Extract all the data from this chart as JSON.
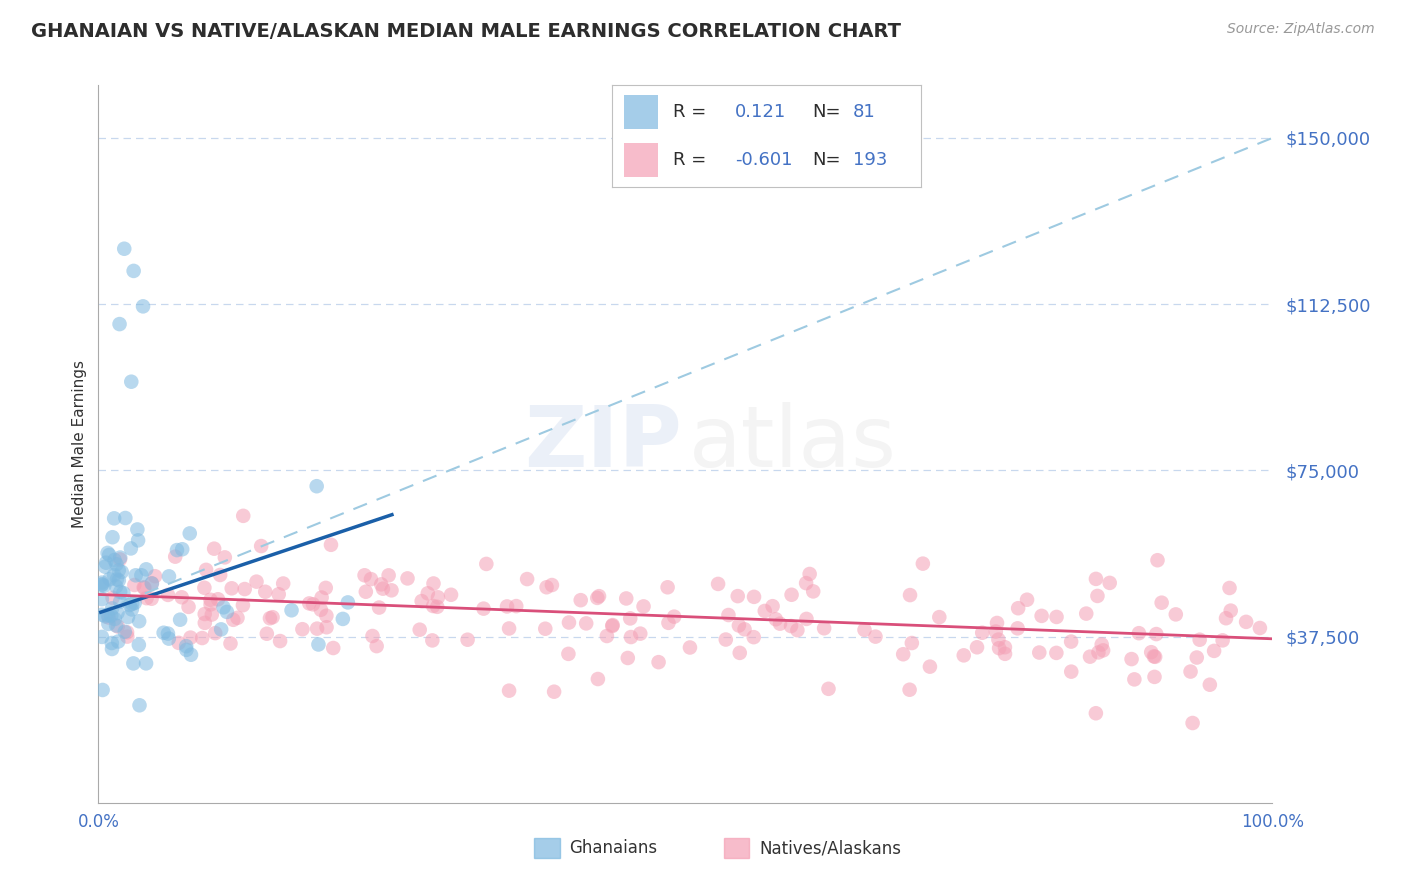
{
  "title": "GHANAIAN VS NATIVE/ALASKAN MEDIAN MALE EARNINGS CORRELATION CHART",
  "source": "Source: ZipAtlas.com",
  "ylabel": "Median Male Earnings",
  "yticks": [
    0,
    37500,
    75000,
    112500,
    150000
  ],
  "ytick_labels": [
    "",
    "$37,500",
    "$75,000",
    "$112,500",
    "$150,000"
  ],
  "ylim": [
    15000,
    162000
  ],
  "xlim": [
    0.0,
    1.0
  ],
  "ghanaian_R": 0.121,
  "ghanaian_N": 81,
  "native_R": -0.601,
  "native_N": 193,
  "blue_color": "#7fb9e0",
  "blue_line_color": "#1a5fa8",
  "blue_dashed_color": "#9ecae1",
  "pink_color": "#f4a0b5",
  "pink_line_color": "#d94f7a",
  "title_color": "#2d2d2d",
  "ytick_color": "#4472c4",
  "xtick_color": "#4472c4",
  "grid_color": "#c8d8ee",
  "background_color": "#ffffff",
  "watermark_zip_color": "#4472c4",
  "watermark_atlas_color": "#aaaaaa",
  "legend_border_color": "#c0c0c0",
  "legend_text_color": "#2d2d2d"
}
